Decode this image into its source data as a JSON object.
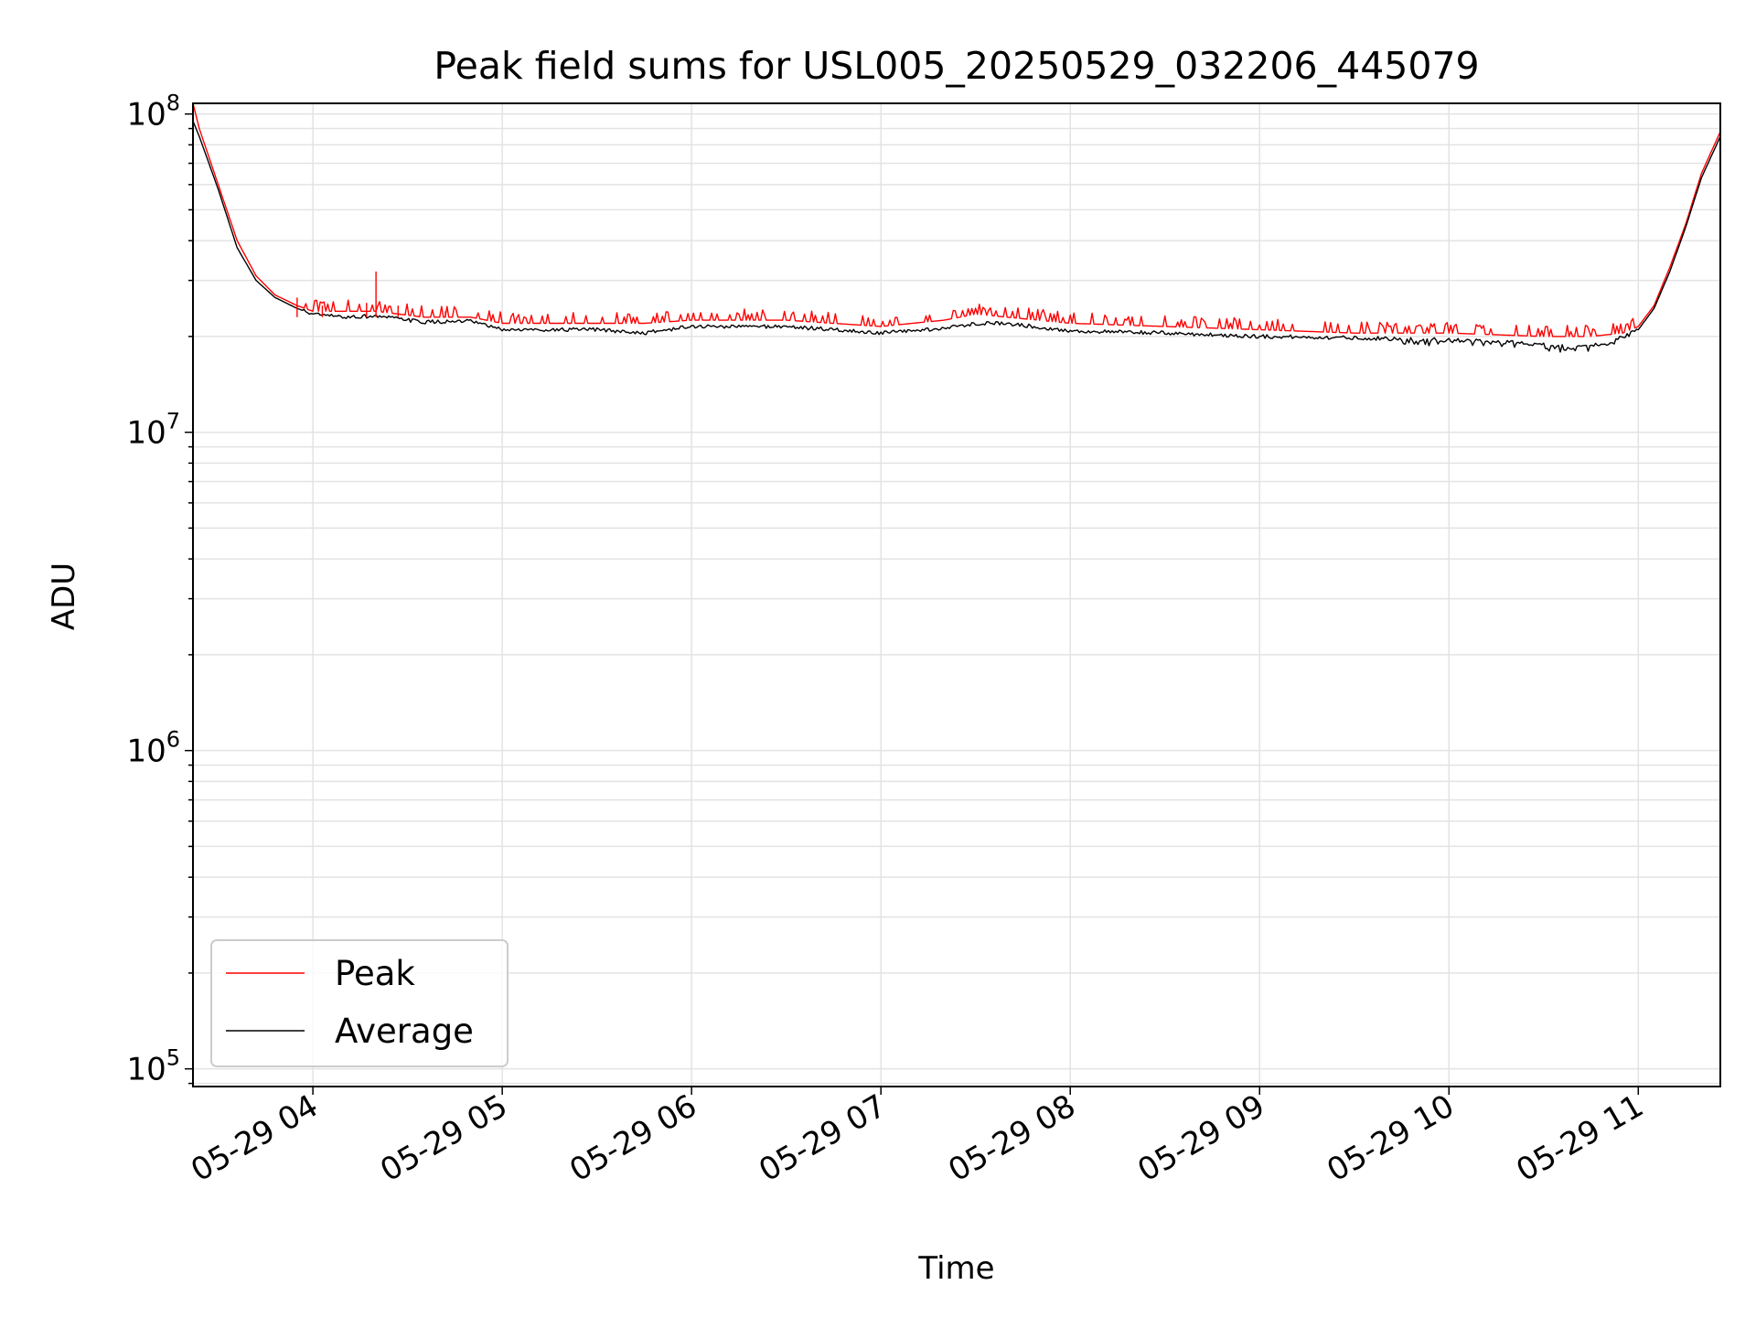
{
  "chart_data": {
    "type": "line",
    "title": "Peak field sums for USL005_20250529_032206_445079",
    "xlabel": "Time",
    "ylabel": "ADU",
    "yscale": "log",
    "ylim": [
      88000,
      108000000
    ],
    "xlim": [
      "2025-05-29T03:22",
      "2025-05-29T11:26"
    ],
    "grid": true,
    "legend_position": "lower-left",
    "x_ticks": [
      "05-29 04",
      "05-29 05",
      "05-29 06",
      "05-29 07",
      "05-29 08",
      "05-29 09",
      "05-29 10",
      "05-29 11"
    ],
    "y_ticks": [
      {
        "base": "10",
        "exp": "5",
        "value": 100000
      },
      {
        "base": "10",
        "exp": "6",
        "value": 1000000
      },
      {
        "base": "10",
        "exp": "7",
        "value": 10000000
      },
      {
        "base": "10",
        "exp": "8",
        "value": 100000000
      }
    ],
    "series": [
      {
        "name": "Peak",
        "color": "#ff0000",
        "x": [
          "2025-05-29T03:22",
          "2025-05-29T03:24",
          "2025-05-29T03:30",
          "2025-05-29T03:36",
          "2025-05-29T03:42",
          "2025-05-29T03:48",
          "2025-05-29T03:55",
          "2025-05-29T04:00",
          "2025-05-29T04:10",
          "2025-05-29T04:20",
          "2025-05-29T04:35",
          "2025-05-29T04:50",
          "2025-05-29T05:00",
          "2025-05-29T05:30",
          "2025-05-29T05:45",
          "2025-05-29T06:00",
          "2025-05-29T06:30",
          "2025-05-29T07:00",
          "2025-05-29T07:20",
          "2025-05-29T07:30",
          "2025-05-29T07:40",
          "2025-05-29T08:00",
          "2025-05-29T08:30",
          "2025-05-29T09:00",
          "2025-05-29T09:30",
          "2025-05-29T10:00",
          "2025-05-29T10:30",
          "2025-05-29T10:45",
          "2025-05-29T10:55",
          "2025-05-29T11:00",
          "2025-05-29T11:05",
          "2025-05-29T11:10",
          "2025-05-29T11:15",
          "2025-05-29T11:20",
          "2025-05-29T11:26"
        ],
        "values": [
          108000000,
          90000000,
          60000000,
          40000000,
          31000000,
          27000000,
          25000000,
          24000000,
          24000000,
          24000000,
          23000000,
          23000000,
          22000000,
          22000000,
          22000000,
          22500000,
          22500000,
          21500000,
          22500000,
          23500000,
          23000000,
          22000000,
          21500000,
          21000000,
          20500000,
          20500000,
          20000000,
          20000000,
          20500000,
          21500000,
          25000000,
          33000000,
          45000000,
          65000000,
          88000000
        ]
      },
      {
        "name": "Average",
        "color": "#000000",
        "x": [
          "2025-05-29T03:22",
          "2025-05-29T03:24",
          "2025-05-29T03:30",
          "2025-05-29T03:36",
          "2025-05-29T03:42",
          "2025-05-29T03:48",
          "2025-05-29T03:55",
          "2025-05-29T04:00",
          "2025-05-29T04:10",
          "2025-05-29T04:20",
          "2025-05-29T04:35",
          "2025-05-29T04:50",
          "2025-05-29T05:00",
          "2025-05-29T05:30",
          "2025-05-29T05:45",
          "2025-05-29T06:00",
          "2025-05-29T06:30",
          "2025-05-29T07:00",
          "2025-05-29T07:20",
          "2025-05-29T07:30",
          "2025-05-29T07:40",
          "2025-05-29T08:00",
          "2025-05-29T08:30",
          "2025-05-29T09:00",
          "2025-05-29T09:30",
          "2025-05-29T10:00",
          "2025-05-29T10:30",
          "2025-05-29T10:40",
          "2025-05-29T10:50",
          "2025-05-29T11:00",
          "2025-05-29T11:05",
          "2025-05-29T11:10",
          "2025-05-29T11:15",
          "2025-05-29T11:20",
          "2025-05-29T11:26"
        ],
        "values": [
          95000000,
          85000000,
          58000000,
          38000000,
          30000000,
          26500000,
          24500000,
          23500000,
          23000000,
          23200000,
          22200000,
          22300000,
          21000000,
          21000000,
          20500000,
          21500000,
          21500000,
          20500000,
          21200000,
          22000000,
          22000000,
          20800000,
          20500000,
          20000000,
          19800000,
          19500000,
          19000000,
          18500000,
          19000000,
          21000000,
          24500000,
          32000000,
          44000000,
          63000000,
          85000000
        ]
      }
    ]
  }
}
